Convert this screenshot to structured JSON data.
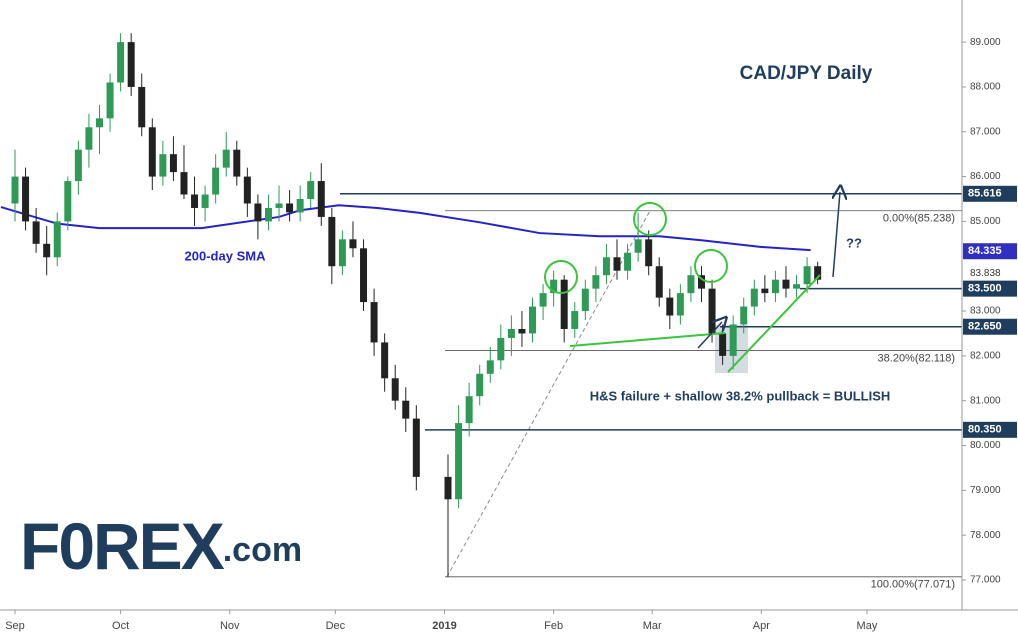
{
  "chart_data": {
    "type": "candlestick",
    "title": "CAD/JPY Daily",
    "xlim": [
      -4.26,
      269
    ],
    "ylim": [
      76.33,
      89.94
    ],
    "xticks": [
      {
        "value": 0,
        "label": "Sep"
      },
      {
        "value": 30,
        "label": "Oct"
      },
      {
        "value": 61,
        "label": "Nov"
      },
      {
        "value": 91,
        "label": "Dec"
      },
      {
        "value": 122,
        "label": "2019"
      },
      {
        "value": 153,
        "label": "Feb"
      },
      {
        "value": 181,
        "label": "Mar"
      },
      {
        "value": 212,
        "label": "Apr"
      },
      {
        "value": 242,
        "label": "May"
      }
    ],
    "yticks": [
      {
        "value": 77,
        "label": "77.000"
      },
      {
        "value": 78,
        "label": "78.000"
      },
      {
        "value": 79,
        "label": "79.000"
      },
      {
        "value": 80,
        "label": "80.000"
      },
      {
        "value": 81,
        "label": "81.000"
      },
      {
        "value": 82,
        "label": "82.000"
      },
      {
        "value": 83,
        "label": "83.000"
      },
      {
        "value": 85,
        "label": "85.000"
      },
      {
        "value": 86,
        "label": "86.000"
      },
      {
        "value": 87,
        "label": "87.000"
      },
      {
        "value": 88,
        "label": "88.000"
      },
      {
        "value": 89,
        "label": "89.000"
      }
    ],
    "up_color": "#2e9a55",
    "down_color": "#222222",
    "x": [
      0,
      3,
      6,
      9,
      12,
      15,
      18,
      21,
      24,
      27,
      30,
      33,
      36,
      39,
      42,
      45,
      48,
      51,
      54,
      57,
      60,
      63,
      66,
      69,
      72,
      75,
      78,
      81,
      84,
      87,
      90,
      93,
      96,
      99,
      102,
      105,
      108,
      111,
      114,
      123,
      126,
      129,
      132,
      135,
      138,
      141,
      144,
      147,
      150,
      153,
      156,
      159,
      162,
      165,
      168,
      171,
      174,
      177,
      180,
      183,
      186,
      189,
      192,
      195,
      198,
      201,
      204,
      207,
      210,
      213,
      216,
      219,
      222,
      225,
      228
    ],
    "open": [
      85.4,
      86.0,
      85.0,
      84.5,
      84.2,
      85.0,
      85.9,
      86.6,
      87.1,
      87.3,
      88.1,
      89.0,
      88.0,
      87.1,
      86.0,
      86.5,
      86.1,
      85.6,
      85.3,
      85.6,
      86.2,
      86.6,
      86.0,
      85.4,
      85.0,
      85.3,
      85.4,
      85.2,
      85.5,
      85.9,
      85.1,
      84.0,
      84.6,
      84.4,
      83.2,
      82.3,
      81.5,
      81.0,
      80.6,
      79.3,
      78.8,
      80.5,
      81.1,
      81.6,
      81.9,
      82.4,
      82.6,
      82.5,
      83.1,
      83.4,
      83.7,
      82.6,
      83.0,
      83.5,
      83.8,
      84.2,
      83.9,
      84.3,
      84.6,
      84.0,
      83.3,
      82.9,
      83.4,
      83.8,
      83.5,
      82.5,
      82.0,
      82.7,
      83.1,
      83.5,
      83.4,
      83.7,
      83.5,
      83.6,
      84.0
    ],
    "high": [
      86.6,
      86.2,
      85.3,
      84.9,
      85.2,
      86.0,
      86.8,
      87.4,
      87.6,
      88.3,
      89.2,
      89.2,
      88.3,
      87.3,
      86.8,
      86.9,
      86.7,
      86.0,
      85.8,
      86.5,
      87.0,
      86.8,
      86.2,
      85.6,
      85.6,
      85.8,
      85.7,
      85.8,
      86.1,
      86.3,
      85.3,
      84.8,
      85.0,
      84.6,
      83.5,
      82.5,
      81.8,
      81.3,
      80.9,
      79.8,
      80.9,
      81.4,
      81.8,
      82.2,
      82.7,
      82.9,
      83.0,
      83.3,
      83.6,
      83.9,
      83.8,
      83.2,
      83.7,
      84.0,
      84.5,
      84.6,
      84.5,
      85.2,
      84.8,
      84.2,
      83.5,
      83.6,
      84.0,
      84.0,
      83.7,
      82.7,
      82.9,
      83.3,
      83.7,
      83.8,
      83.9,
      84.0,
      83.8,
      84.2,
      84.1
    ],
    "low": [
      85.0,
      84.8,
      84.3,
      83.8,
      84.0,
      84.8,
      85.6,
      86.2,
      86.5,
      87.0,
      87.9,
      87.8,
      86.9,
      85.7,
      85.8,
      85.9,
      85.5,
      84.9,
      85.0,
      85.4,
      86.0,
      85.8,
      85.1,
      84.6,
      84.8,
      85.0,
      85.0,
      85.0,
      85.3,
      84.9,
      83.6,
      83.8,
      84.2,
      83.0,
      82.0,
      81.2,
      80.8,
      80.3,
      79.0,
      77.071,
      78.6,
      80.2,
      80.9,
      81.4,
      81.7,
      82.0,
      82.2,
      82.3,
      82.8,
      83.1,
      82.3,
      82.4,
      82.8,
      83.2,
      83.6,
      83.7,
      83.7,
      84.1,
      83.8,
      83.1,
      82.6,
      82.7,
      83.2,
      83.2,
      82.3,
      81.8,
      81.7,
      82.5,
      82.9,
      83.2,
      83.2,
      83.3,
      83.3,
      83.4,
      83.6
    ],
    "close": [
      86.0,
      85.0,
      84.5,
      84.2,
      85.0,
      85.9,
      86.6,
      87.1,
      87.3,
      88.1,
      89.0,
      88.0,
      87.1,
      86.0,
      86.5,
      86.1,
      85.6,
      85.3,
      85.6,
      86.2,
      86.6,
      86.0,
      85.4,
      85.0,
      85.3,
      85.4,
      85.2,
      85.5,
      85.9,
      85.1,
      84.0,
      84.6,
      84.4,
      83.2,
      82.3,
      81.5,
      81.0,
      80.6,
      79.3,
      78.8,
      80.5,
      81.1,
      81.6,
      81.9,
      82.4,
      82.6,
      82.5,
      83.1,
      83.4,
      83.7,
      82.6,
      83.0,
      83.5,
      83.8,
      84.2,
      83.9,
      84.3,
      84.6,
      84.0,
      83.3,
      82.9,
      83.4,
      83.8,
      83.5,
      82.5,
      82.0,
      82.7,
      83.1,
      83.5,
      83.4,
      83.7,
      83.5,
      83.6,
      84.0,
      83.7
    ],
    "sma": {
      "name": "200-day SMA",
      "color": "#2323c8",
      "x": [
        -4,
        12,
        24,
        53,
        75,
        81,
        92,
        103,
        115,
        132,
        149,
        166,
        183,
        195,
        212,
        226
      ],
      "values": [
        85.32,
        84.95,
        84.85,
        84.85,
        85.1,
        85.25,
        85.36,
        85.3,
        85.19,
        84.98,
        84.74,
        84.67,
        84.67,
        84.58,
        84.43,
        84.36
      ]
    },
    "levels": [
      {
        "value": 85.616,
        "label": "85.616",
        "color": "#1f3d5c",
        "line": true
      },
      {
        "value": 84.335,
        "label": "84.335",
        "color": "#2f2fc0",
        "line": false
      },
      {
        "value": 83.5,
        "label": "83.500",
        "color": "#1f3d5c",
        "line": true
      },
      {
        "value": 82.65,
        "label": "82.650",
        "color": "#1f3d5c",
        "line": true
      },
      {
        "value": 80.35,
        "label": "80.350",
        "color": "#1f3d5c",
        "line": true
      }
    ],
    "plain_labels": [
      {
        "value": 83.838,
        "label": "83.838"
      }
    ],
    "fib": [
      {
        "value": 85.238,
        "label": "0.00%(85.238)"
      },
      {
        "value": 82.118,
        "label": "38.20%(82.118)"
      },
      {
        "value": 77.071,
        "label": "100.00%(77.071)"
      }
    ],
    "annotations": {
      "sma_label": "200-day SMA",
      "pattern": "H&S failure + shallow 38.2% pullback = BULLISH",
      "question": "??"
    },
    "logo": {
      "brand": "F0REX",
      "suffix": ".com"
    }
  }
}
